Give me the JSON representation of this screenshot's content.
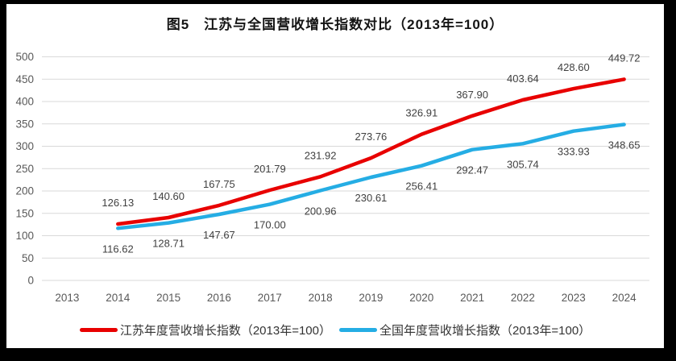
{
  "chart_data": {
    "type": "line",
    "title": "图5　江苏与全国营收增长指数对比（2013年=100）",
    "categories": [
      "2013",
      "2014",
      "2015",
      "2016",
      "2017",
      "2018",
      "2019",
      "2020",
      "2021",
      "2022",
      "2023",
      "2024"
    ],
    "series": [
      {
        "key": "jiangsu",
        "name": "江苏年度营收增长指数（2013年=100）",
        "color": "#e80000",
        "start_index": 1,
        "label_position": "above",
        "values": [
          126.13,
          140.6,
          167.75,
          201.79,
          231.92,
          273.76,
          326.91,
          367.9,
          403.64,
          428.6,
          449.72
        ]
      },
      {
        "key": "national",
        "name": "全国年度营收增长指数（2013年=100）",
        "color": "#25ade4",
        "start_index": 1,
        "label_position": "below",
        "values": [
          116.62,
          128.71,
          147.67,
          170.0,
          200.96,
          230.61,
          256.41,
          292.47,
          305.74,
          333.93,
          348.65
        ]
      }
    ],
    "ylim": [
      0,
      500
    ],
    "y_ticks": [
      0,
      50,
      100,
      150,
      200,
      250,
      300,
      350,
      400,
      450,
      500
    ],
    "grid": "horizontal",
    "legend_position": "bottom",
    "data_labels": "two-decimals"
  },
  "style": {
    "grid_color": "#d9d9d9",
    "axis_text_color": "#595959",
    "data_label_color": "#404040",
    "frame_color": "#000000",
    "panel_background": "#ffffff"
  }
}
